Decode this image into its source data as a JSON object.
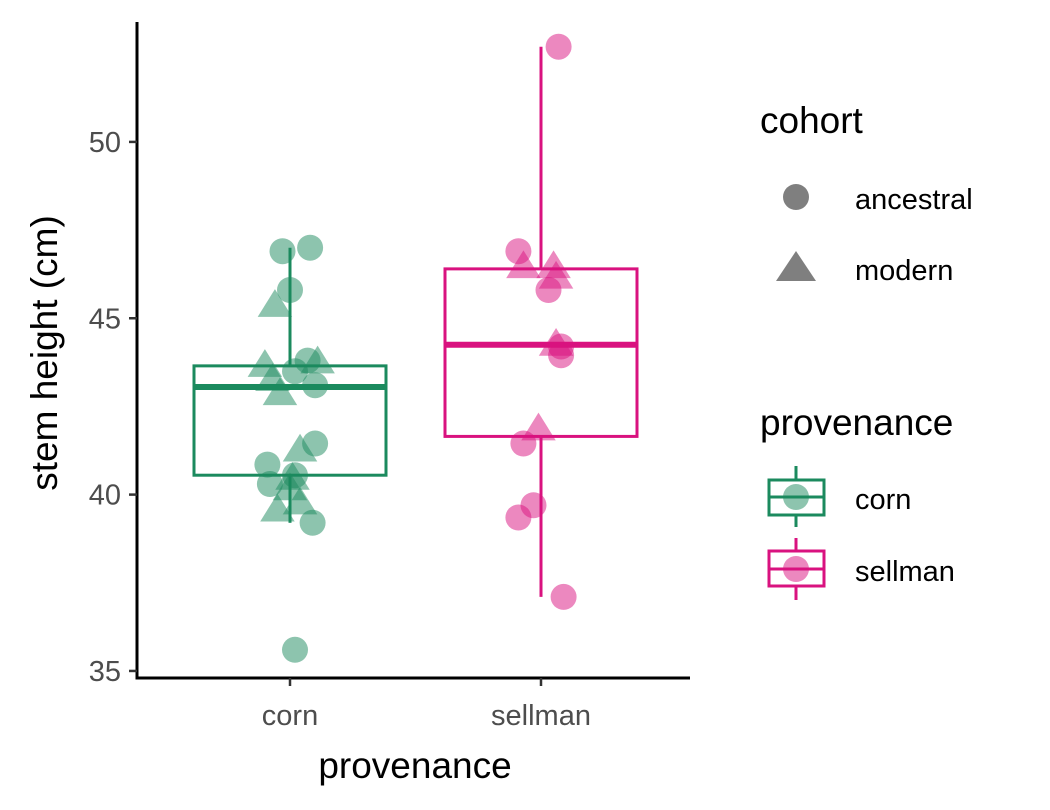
{
  "chart_data": {
    "type": "boxplot-with-jittered-points",
    "xlabel": "provenance",
    "ylabel": "stem height (cm)",
    "categories": [
      "corn",
      "sellman"
    ],
    "ylim": [
      34.8,
      53.4
    ],
    "yticks": [
      35,
      40,
      45,
      50
    ],
    "ytick_labels": [
      "35",
      "40",
      "45",
      "50"
    ],
    "colors": {
      "corn": "#1b8a5e",
      "sellman": "#d9127f"
    },
    "boxes": [
      {
        "category": "corn",
        "q1": 40.55,
        "median": 43.05,
        "q3": 43.65,
        "whisker_low": 39.2,
        "whisker_high": 47.0
      },
      {
        "category": "sellman",
        "q1": 41.65,
        "median": 44.25,
        "q3": 46.4,
        "whisker_low": 37.1,
        "whisker_high": 52.7
      }
    ],
    "points": [
      {
        "provenance": "corn",
        "cohort": "ancestral",
        "jitter": 0.08,
        "y": 47.0
      },
      {
        "provenance": "corn",
        "cohort": "ancestral",
        "jitter": -0.03,
        "y": 46.9
      },
      {
        "provenance": "corn",
        "cohort": "ancestral",
        "jitter": 0.0,
        "y": 45.8
      },
      {
        "provenance": "corn",
        "cohort": "ancestral",
        "jitter": 0.07,
        "y": 43.8
      },
      {
        "provenance": "corn",
        "cohort": "ancestral",
        "jitter": 0.02,
        "y": 43.5
      },
      {
        "provenance": "corn",
        "cohort": "ancestral",
        "jitter": 0.1,
        "y": 43.1
      },
      {
        "provenance": "corn",
        "cohort": "ancestral",
        "jitter": 0.1,
        "y": 41.45
      },
      {
        "provenance": "corn",
        "cohort": "ancestral",
        "jitter": -0.09,
        "y": 40.85
      },
      {
        "provenance": "corn",
        "cohort": "ancestral",
        "jitter": 0.02,
        "y": 40.55
      },
      {
        "provenance": "corn",
        "cohort": "ancestral",
        "jitter": -0.08,
        "y": 40.3
      },
      {
        "provenance": "corn",
        "cohort": "ancestral",
        "jitter": 0.09,
        "y": 39.2
      },
      {
        "provenance": "corn",
        "cohort": "ancestral",
        "jitter": 0.02,
        "y": 35.6
      },
      {
        "provenance": "corn",
        "cohort": "modern",
        "jitter": -0.06,
        "y": 45.4
      },
      {
        "provenance": "corn",
        "cohort": "modern",
        "jitter": -0.1,
        "y": 43.7
      },
      {
        "provenance": "corn",
        "cohort": "modern",
        "jitter": 0.11,
        "y": 43.8
      },
      {
        "provenance": "corn",
        "cohort": "modern",
        "jitter": -0.07,
        "y": 43.3
      },
      {
        "provenance": "corn",
        "cohort": "modern",
        "jitter": -0.04,
        "y": 42.9
      },
      {
        "provenance": "corn",
        "cohort": "modern",
        "jitter": 0.04,
        "y": 41.3
      },
      {
        "provenance": "corn",
        "cohort": "modern",
        "jitter": 0.01,
        "y": 40.5
      },
      {
        "provenance": "corn",
        "cohort": "modern",
        "jitter": 0.0,
        "y": 40.2
      },
      {
        "provenance": "corn",
        "cohort": "modern",
        "jitter": -0.05,
        "y": 39.6
      },
      {
        "provenance": "corn",
        "cohort": "modern",
        "jitter": 0.04,
        "y": 39.8
      },
      {
        "provenance": "sellman",
        "cohort": "ancestral",
        "jitter": 0.07,
        "y": 52.7
      },
      {
        "provenance": "sellman",
        "cohort": "ancestral",
        "jitter": -0.09,
        "y": 46.9
      },
      {
        "provenance": "sellman",
        "cohort": "ancestral",
        "jitter": 0.03,
        "y": 45.8
      },
      {
        "provenance": "sellman",
        "cohort": "ancestral",
        "jitter": 0.08,
        "y": 44.2
      },
      {
        "provenance": "sellman",
        "cohort": "ancestral",
        "jitter": 0.08,
        "y": 43.95
      },
      {
        "provenance": "sellman",
        "cohort": "ancestral",
        "jitter": -0.07,
        "y": 41.45
      },
      {
        "provenance": "sellman",
        "cohort": "ancestral",
        "jitter": -0.03,
        "y": 39.7
      },
      {
        "provenance": "sellman",
        "cohort": "ancestral",
        "jitter": -0.09,
        "y": 39.35
      },
      {
        "provenance": "sellman",
        "cohort": "ancestral",
        "jitter": 0.09,
        "y": 37.1
      },
      {
        "provenance": "sellman",
        "cohort": "modern",
        "jitter": -0.07,
        "y": 46.5
      },
      {
        "provenance": "sellman",
        "cohort": "modern",
        "jitter": 0.05,
        "y": 46.5
      },
      {
        "provenance": "sellman",
        "cohort": "modern",
        "jitter": 0.06,
        "y": 46.2
      },
      {
        "provenance": "sellman",
        "cohort": "modern",
        "jitter": 0.06,
        "y": 44.3
      },
      {
        "provenance": "sellman",
        "cohort": "modern",
        "jitter": -0.01,
        "y": 41.9
      }
    ],
    "legend": {
      "position": "right",
      "cohort": {
        "title": "cohort",
        "entries": [
          {
            "label": "ancestral",
            "shape": "circle"
          },
          {
            "label": "modern",
            "shape": "triangle"
          }
        ]
      },
      "provenance": {
        "title": "provenance",
        "entries": [
          {
            "label": "corn"
          },
          {
            "label": "sellman"
          }
        ]
      }
    },
    "grid": false
  }
}
